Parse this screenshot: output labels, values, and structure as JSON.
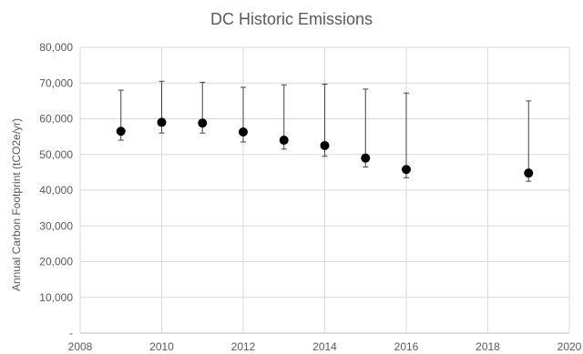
{
  "chart_data": {
    "type": "scatter",
    "title": "DC Historic Emissions",
    "xlabel": "",
    "ylabel": "Annual Carbon Footprint (tCO2e/yr)",
    "xlim": [
      2008,
      2020
    ],
    "ylim": [
      0,
      80000
    ],
    "x_ticks": [
      2008,
      2010,
      2012,
      2014,
      2016,
      2018,
      2020
    ],
    "y_ticks": [
      0,
      10000,
      20000,
      30000,
      40000,
      50000,
      60000,
      70000,
      80000
    ],
    "y_tick_labels": [
      "-",
      "10,000",
      "20,000",
      "30,000",
      "40,000",
      "50,000",
      "60,000",
      "70,000",
      "80,000"
    ],
    "grid": true,
    "legend": "none",
    "points": [
      {
        "x": 2009,
        "y": 56500,
        "low": 54000,
        "high": 68000
      },
      {
        "x": 2010,
        "y": 59000,
        "low": 56000,
        "high": 70500
      },
      {
        "x": 2011,
        "y": 58800,
        "low": 56000,
        "high": 70200
      },
      {
        "x": 2012,
        "y": 56300,
        "low": 53500,
        "high": 68800
      },
      {
        "x": 2013,
        "y": 54000,
        "low": 51500,
        "high": 69500
      },
      {
        "x": 2014,
        "y": 52500,
        "low": 49500,
        "high": 69700
      },
      {
        "x": 2015,
        "y": 49000,
        "low": 46500,
        "high": 68300
      },
      {
        "x": 2016,
        "y": 45800,
        "low": 43500,
        "high": 67200
      },
      {
        "x": 2019,
        "y": 44800,
        "low": 42500,
        "high": 65000
      }
    ]
  }
}
